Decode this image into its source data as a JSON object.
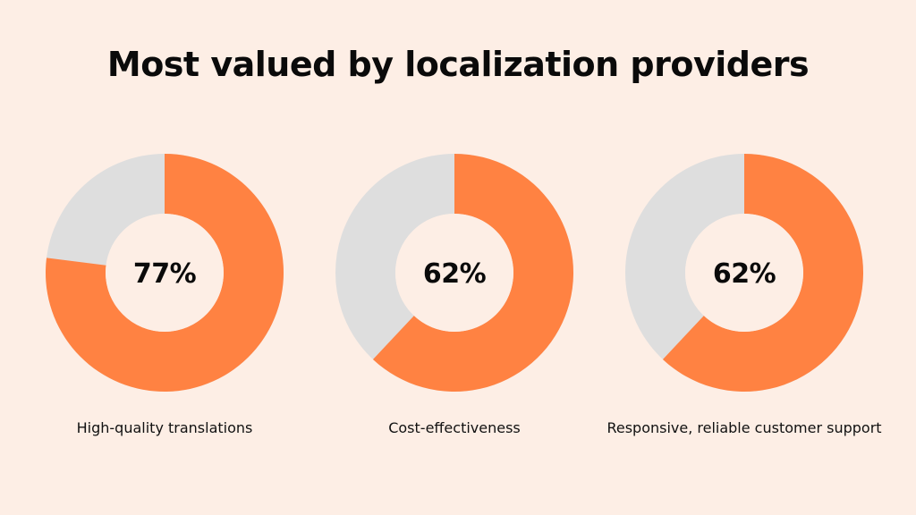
{
  "page": {
    "title": "Most valued by localization providers"
  },
  "colors": {
    "background": "#fdeee5",
    "accent": "#ff8242",
    "track": "#dedede",
    "hole": "#fdeee5"
  },
  "chart_data": [
    {
      "type": "pie",
      "category": "High-quality translations",
      "value": 77,
      "value_label": "77%",
      "total": 100
    },
    {
      "type": "pie",
      "category": "Cost-effectiveness",
      "value": 62,
      "value_label": "62%",
      "total": 100
    },
    {
      "type": "pie",
      "category": "Responsive, reliable customer support",
      "value": 62,
      "value_label": "62%",
      "total": 100
    }
  ]
}
